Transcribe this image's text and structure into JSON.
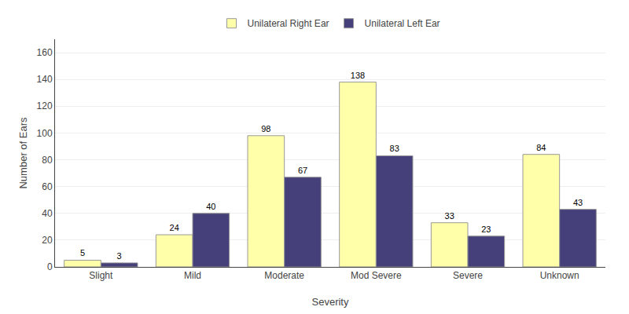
{
  "chart_data": {
    "type": "bar",
    "categories": [
      "Slight",
      "Mild",
      "Moderate",
      "Mod Severe",
      "Severe",
      "Unknown"
    ],
    "series": [
      {
        "name": "Unilateral Right Ear",
        "color": "#FFFFAA",
        "values": [
          5,
          24,
          98,
          138,
          33,
          84
        ]
      },
      {
        "name": "Unilateral Left Ear",
        "color": "#45407A",
        "values": [
          3,
          40,
          67,
          83,
          23,
          43
        ]
      }
    ],
    "xlabel": "Severity",
    "ylabel": "Number of Ears",
    "ylim": [
      0,
      170
    ],
    "yticks": [
      0,
      20,
      40,
      60,
      80,
      100,
      120,
      140,
      160
    ],
    "grid": true,
    "legend": "top",
    "data_labels": true
  }
}
